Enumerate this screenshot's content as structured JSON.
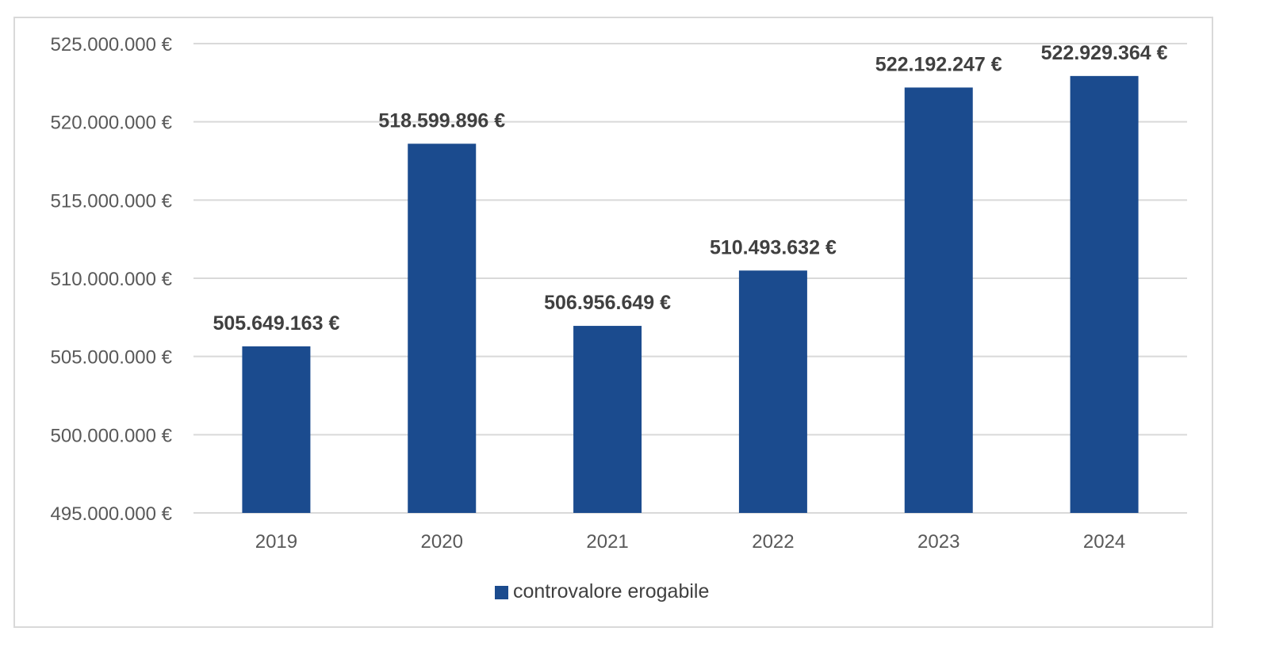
{
  "chart_data": {
    "type": "bar",
    "categories": [
      "2019",
      "2020",
      "2021",
      "2022",
      "2023",
      "2024"
    ],
    "series": [
      {
        "name": "controvalore erogabile",
        "values": [
          505649163,
          518599896,
          506956649,
          510493632,
          522192247,
          522929364
        ],
        "labels": [
          "505.649.163 €",
          "518.599.896 €",
          "506.956.649 €",
          "510.493.632 €",
          "522.192.247 €",
          "522.929.364 €"
        ],
        "color": "#1b4b8e"
      }
    ],
    "ylim": [
      495000000,
      525000000
    ],
    "yticks": [
      495000000,
      500000000,
      505000000,
      510000000,
      515000000,
      520000000,
      525000000
    ],
    "ytick_labels": [
      "495.000.000 €",
      "500.000.000 €",
      "505.000.000 €",
      "510.000.000 €",
      "515.000.000 €",
      "520.000.000 €",
      "525.000.000 €"
    ],
    "title": "",
    "xlabel": "",
    "ylabel": "",
    "grid": true,
    "legend_position": "bottom"
  },
  "colors": {
    "bar": "#1b4b8e",
    "gridline": "#d9d9d9",
    "tick_text": "#595959",
    "label_text": "#404040"
  }
}
